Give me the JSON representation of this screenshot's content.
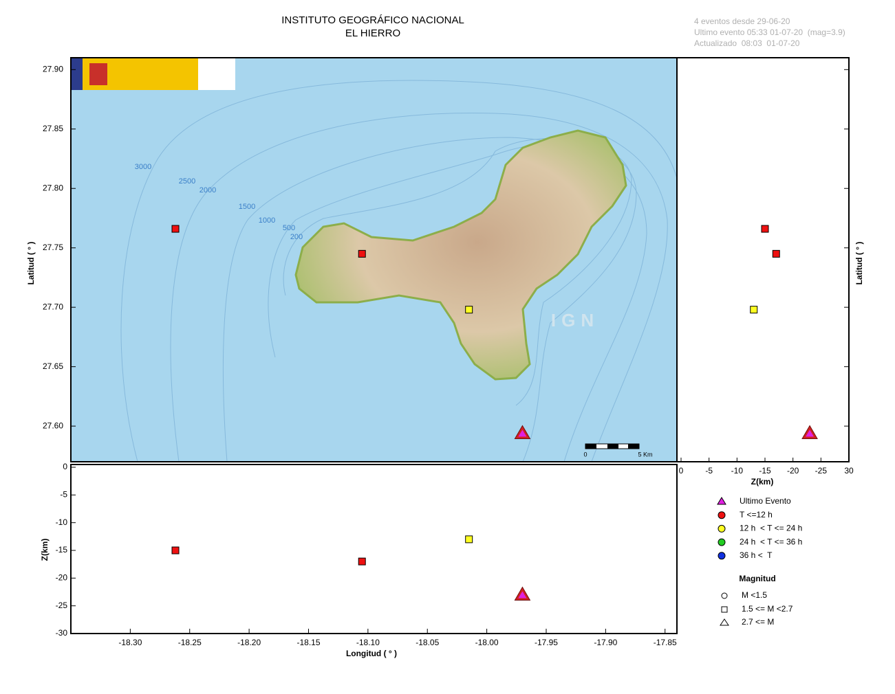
{
  "chart_data": {
    "type": "scatter",
    "title": "INSTITUTO GEOGRÁFICO NACIONAL",
    "subtitle": "EL HIERRO",
    "info": [
      "4 eventos desde 29-06-20",
      "Ultimo evento 05:33 01-07-20  (mag=3.9)",
      "Actualizado  08:03  01-07-20"
    ],
    "x_label": "Longitud ( ° )",
    "y_label": "Latitud ( ° )",
    "z_label": "Z(km)",
    "xlim": [
      -18.35,
      -17.84
    ],
    "ylim": [
      27.57,
      27.91
    ],
    "zlim": [
      0,
      -30
    ],
    "xticks": [
      {
        "value": -18.3,
        "label": "-18.30"
      },
      -18.25,
      {
        "value": -18.2,
        "label": "-18.20"
      },
      -18.15,
      {
        "value": -18.1,
        "label": "-18.10"
      },
      -18.05,
      {
        "value": -18.0,
        "label": "-18.00"
      },
      -17.95,
      {
        "value": -17.9,
        "label": "-17.90"
      },
      -17.85
    ],
    "yticks": [
      {
        "value": 27.6,
        "label": "27.60"
      },
      27.65,
      {
        "value": 27.7,
        "label": "27.70"
      },
      27.75,
      {
        "value": 27.8,
        "label": "27.80"
      },
      27.85,
      {
        "value": 27.9,
        "label": "27.90"
      }
    ],
    "zticks": [
      0,
      -5,
      -10,
      -15,
      -20,
      -25,
      -30
    ],
    "z_side_ticks": [
      0,
      -5,
      -10,
      -15,
      -20,
      -25,
      {
        "value": -30,
        "label": "30"
      }
    ],
    "series": [
      {
        "name": "Ultimo Evento",
        "color": "#e020e0",
        "marker": "triangle",
        "x": [
          -17.97
        ],
        "y": [
          27.594
        ],
        "z": [
          -23
        ]
      },
      {
        "name": "T <=12 h",
        "color": "#ee1111",
        "marker": "square",
        "x": [
          -18.262,
          -18.105
        ],
        "y": [
          27.766,
          27.745
        ],
        "z": [
          -15,
          -17
        ]
      },
      {
        "name": "12 h  < T <= 24 h",
        "color": "#ffff22",
        "marker": "square",
        "x": [
          -18.015
        ],
        "y": [
          27.698
        ],
        "z": [
          -13
        ]
      },
      {
        "name": "24 h  < T <= 36 h",
        "color": "#22cc22",
        "marker": "square",
        "x": [],
        "y": [],
        "z": []
      },
      {
        "name": "36 h <  T",
        "color": "#1030e0",
        "marker": "square",
        "x": [],
        "y": [],
        "z": []
      }
    ],
    "magnitude_legend": {
      "title": "Magnitud",
      "items": [
        "M <1.5",
        "1.5 <= M <2.7",
        "2.7 <= M"
      ]
    },
    "map_labels": [
      "3000",
      "2500",
      "2000",
      "1500",
      "1000",
      "500",
      "200"
    ],
    "scale_bar": [
      "0",
      "5 Km"
    ],
    "watermark": "IGN"
  }
}
